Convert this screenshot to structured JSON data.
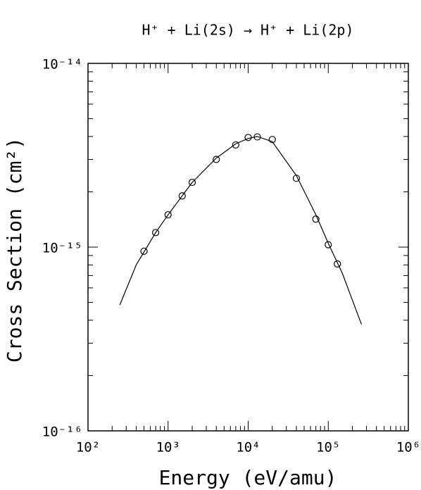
{
  "chart_data": {
    "type": "scatter",
    "title": "H⁺ + Li(2s) → H⁺ + Li(2p)",
    "xlabel": "Energy (eV/amu)",
    "ylabel": "Cross Section (cm²)",
    "xscale": "log",
    "yscale": "log",
    "color": "#000000",
    "xlim": [
      100,
      1000000
    ],
    "ylim": [
      1e-16,
      1e-14
    ],
    "xticks": [
      {
        "value": 100,
        "label": "10²"
      },
      {
        "value": 1000,
        "label": "10³"
      },
      {
        "value": 10000,
        "label": "10⁴"
      },
      {
        "value": 100000,
        "label": "10⁵"
      },
      {
        "value": 1000000,
        "label": "10⁶"
      }
    ],
    "yticks": [
      {
        "value": 1e-16,
        "label": "10⁻¹⁶"
      },
      {
        "value": 1e-15,
        "label": "10⁻¹⁵"
      },
      {
        "value": 1e-14,
        "label": "10⁻¹⁴"
      }
    ],
    "series": [
      {
        "type": "scatter",
        "x": [
          500,
          700,
          1000,
          1500,
          2000,
          4000,
          7000,
          10000,
          13000,
          20000,
          40000,
          70000,
          100000,
          130000
        ],
        "values": [
          9.5e-16,
          1.2e-15,
          1.5e-15,
          1.9e-15,
          2.25e-15,
          3e-15,
          3.6e-15,
          3.95e-15,
          3.98e-15,
          3.85e-15,
          2.37e-15,
          1.42e-15,
          1.03e-15,
          8.1e-16
        ]
      },
      {
        "type": "line",
        "x": [
          250,
          400,
          700,
          1000,
          2000,
          4000,
          7000,
          10000,
          13000,
          20000,
          40000,
          70000,
          100000,
          150000,
          260000
        ],
        "values": [
          4.85e-16,
          8e-16,
          1.2e-15,
          1.5e-15,
          2.25e-15,
          3.05e-15,
          3.65e-15,
          3.9e-15,
          4e-15,
          3.75e-15,
          2.45e-15,
          1.5e-15,
          1.05e-15,
          7.2e-16,
          3.8e-16
        ]
      }
    ]
  }
}
